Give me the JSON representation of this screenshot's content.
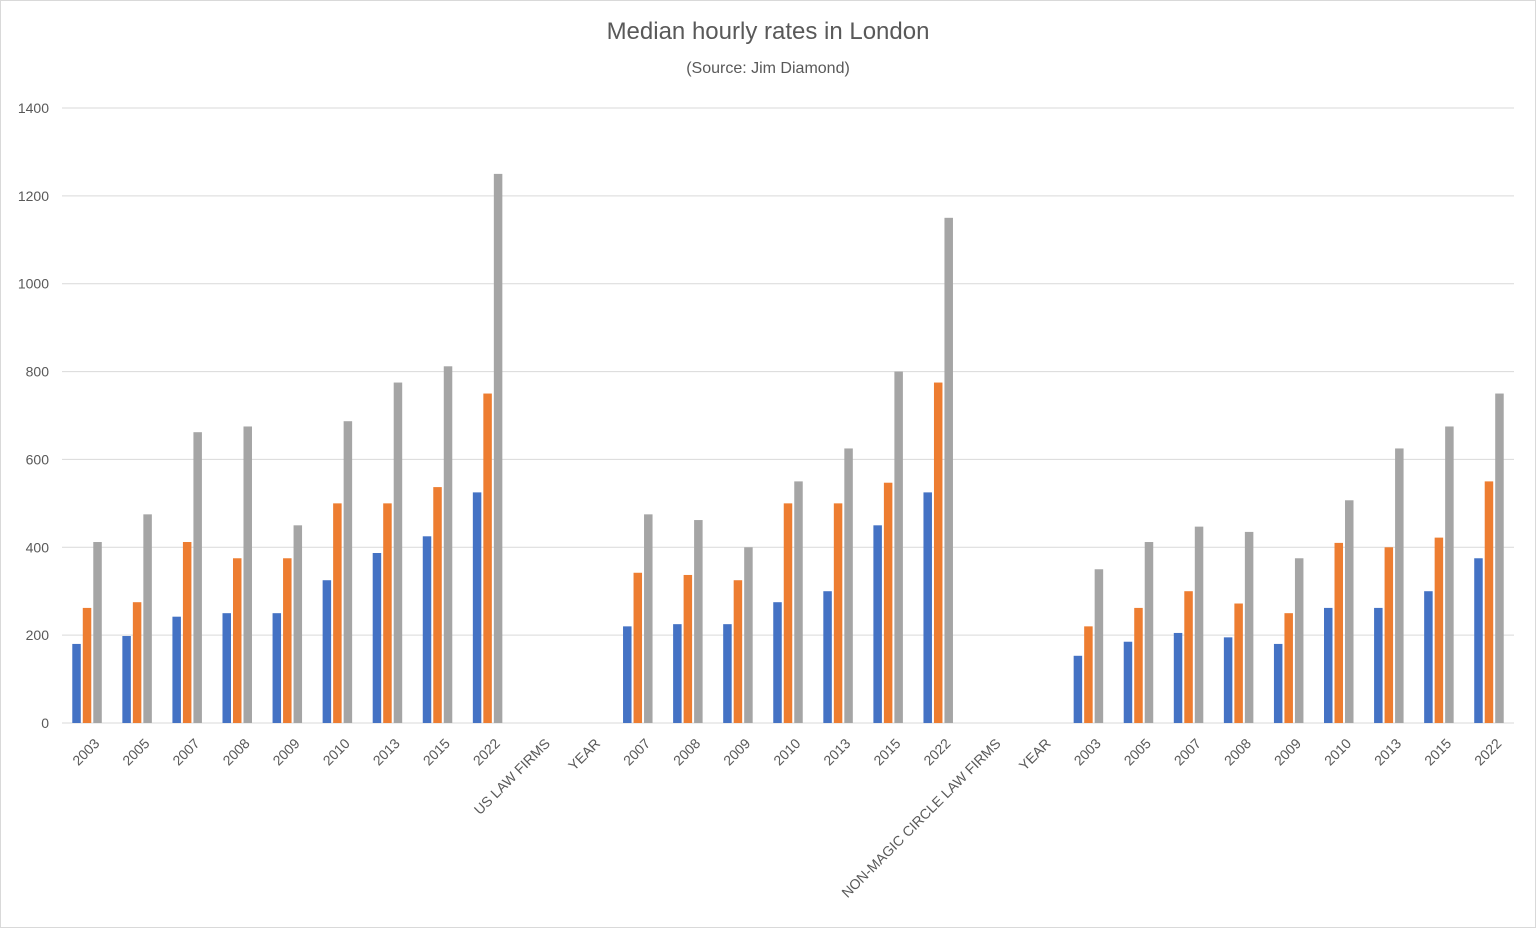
{
  "chart_data": {
    "type": "bar",
    "title": "Median hourly rates in London",
    "subtitle": "(Source: Jim Diamond)",
    "xlabel": "",
    "ylabel": "",
    "ylim": [
      0,
      1400
    ],
    "yticks": [
      0,
      200,
      400,
      600,
      800,
      1000,
      1200,
      1400
    ],
    "grid": true,
    "legend": "none",
    "categories": [
      "2003",
      "2005",
      "2007",
      "2008",
      "2009",
      "2010",
      "2013",
      "2015",
      "2022",
      "US LAW FIRMS",
      "YEAR",
      "2007",
      "2008",
      "2009",
      "2010",
      "2013",
      "2015",
      "2022",
      "NON-MAGIC CIRCLE LAW FIRMS",
      "YEAR",
      "2003",
      "2005",
      "2007",
      "2008",
      "2009",
      "2010",
      "2013",
      "2015",
      "2022"
    ],
    "series": [
      {
        "color": "#4472c4",
        "values": [
          180,
          198,
          242,
          250,
          250,
          325,
          387,
          425,
          525,
          null,
          null,
          220,
          225,
          225,
          275,
          300,
          450,
          525,
          null,
          null,
          153,
          185,
          205,
          195,
          180,
          262,
          262,
          300,
          375
        ]
      },
      {
        "color": "#ed7d31",
        "values": [
          262,
          275,
          412,
          375,
          375,
          500,
          500,
          537,
          750,
          null,
          null,
          342,
          337,
          325,
          500,
          500,
          547,
          775,
          null,
          null,
          220,
          262,
          300,
          272,
          250,
          410,
          400,
          422,
          550
        ]
      },
      {
        "color": "#a5a5a5",
        "values": [
          412,
          475,
          662,
          675,
          450,
          687,
          775,
          812,
          1250,
          null,
          null,
          475,
          462,
          400,
          550,
          625,
          800,
          1150,
          null,
          null,
          350,
          412,
          447,
          435,
          375,
          507,
          625,
          675,
          750
        ]
      }
    ]
  }
}
